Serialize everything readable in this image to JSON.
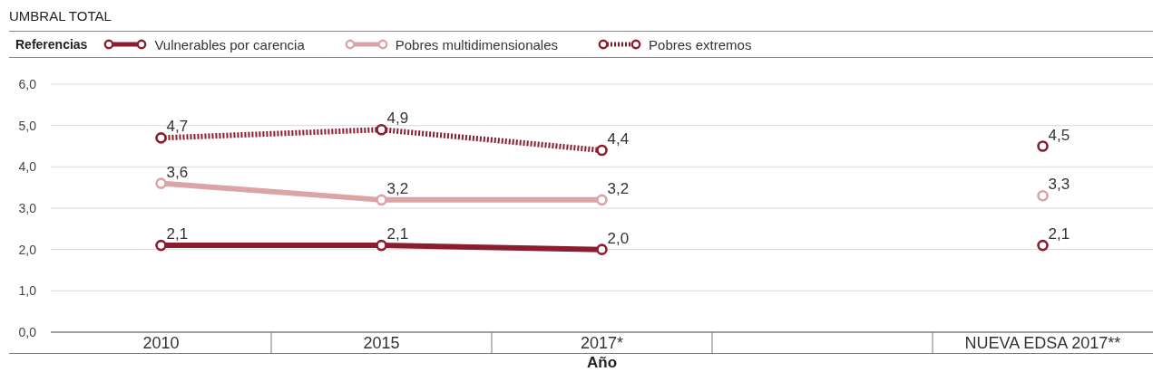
{
  "chart_data": {
    "type": "line",
    "title": "UMBRAL TOTAL",
    "legend_title": "Referencias",
    "xlabel": "Año",
    "categories": [
      "2010",
      "2015",
      "2017*",
      null,
      "NUEVA EDSA 2017**"
    ],
    "series": [
      {
        "name": "Vulnerables por carencia",
        "color": "#8b1e2e",
        "values": [
          2.1,
          2.1,
          2.0,
          null,
          2.1
        ],
        "value_labels": [
          "2,1",
          "2,1",
          "2,0",
          null,
          "2,1"
        ]
      },
      {
        "name": "Pobres multidimensionales",
        "color": "#dba4a7",
        "values": [
          3.6,
          3.2,
          3.2,
          null,
          3.3
        ],
        "value_labels": [
          "3,6",
          "3,2",
          "3,2",
          null,
          "3,3"
        ]
      },
      {
        "name": "Pobres extremos",
        "color": "#8b1e2e",
        "line_style": "dotted",
        "values": [
          4.7,
          4.9,
          4.4,
          null,
          4.5
        ],
        "value_labels": [
          "4,7",
          "4,9",
          "4,4",
          null,
          "4,5"
        ]
      }
    ],
    "ylim": [
      0,
      6
    ],
    "yticks": [
      {
        "value": 0,
        "label": "0,0"
      },
      {
        "value": 1,
        "label": "1,0"
      },
      {
        "value": 2,
        "label": "2,0"
      },
      {
        "value": 3,
        "label": "3,0"
      },
      {
        "value": 4,
        "label": "4,0"
      },
      {
        "value": 5,
        "label": "5,0"
      },
      {
        "value": 6,
        "label": "6,0"
      }
    ],
    "grid": "y",
    "legend": "top left",
    "marker": "circle",
    "line_style": "solid"
  }
}
